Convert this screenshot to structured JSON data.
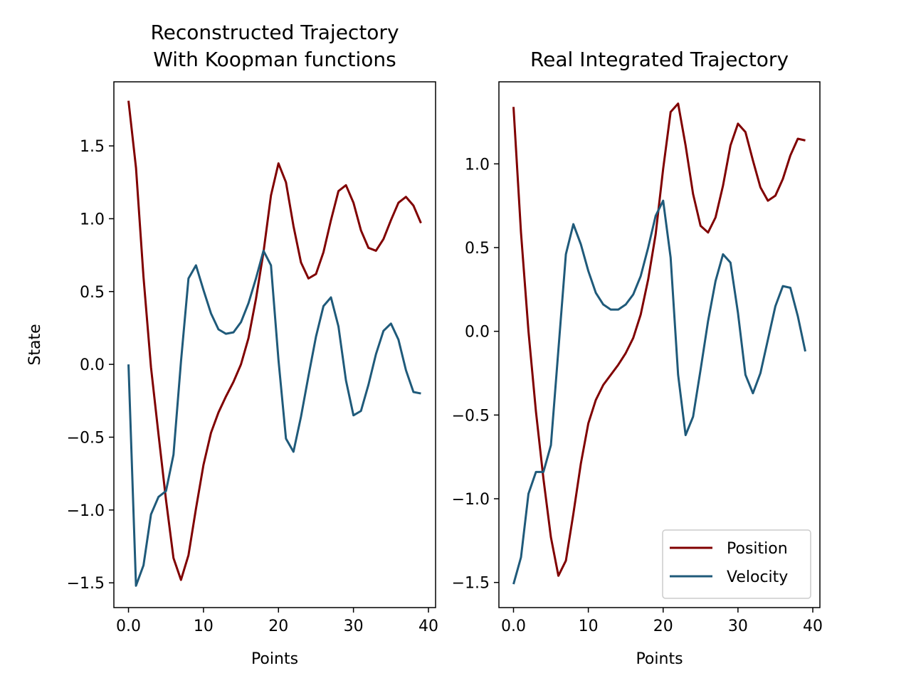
{
  "chart_data": [
    {
      "type": "line",
      "title": "Reconstructed Trajectory\nWith Koopman functions",
      "xlabel": "Points",
      "ylabel": "State",
      "xlim": [
        -1.95,
        40.95
      ],
      "ylim": [
        -1.67,
        1.94
      ],
      "xticks": [
        0,
        10,
        20,
        30,
        40
      ],
      "yticks": [
        -1.5,
        -1.0,
        -0.5,
        0.0,
        0.5,
        1.0,
        1.5
      ],
      "grid": false,
      "x": [
        0,
        1,
        2,
        3,
        4,
        5,
        6,
        7,
        8,
        9,
        10,
        11,
        12,
        13,
        14,
        15,
        16,
        17,
        18,
        19,
        20,
        21,
        22,
        23,
        24,
        25,
        26,
        27,
        28,
        29,
        30,
        31,
        32,
        33,
        34,
        35,
        36,
        37,
        38,
        39
      ],
      "series": [
        {
          "name": "Position",
          "color": "#800000",
          "values": [
            1.81,
            1.35,
            0.6,
            -0.02,
            -0.48,
            -0.93,
            -1.33,
            -1.48,
            -1.31,
            -0.99,
            -0.69,
            -0.47,
            -0.33,
            -0.22,
            -0.12,
            0.0,
            0.18,
            0.45,
            0.77,
            1.16,
            1.38,
            1.25,
            0.95,
            0.7,
            0.59,
            0.62,
            0.77,
            0.99,
            1.19,
            1.23,
            1.11,
            0.92,
            0.8,
            0.78,
            0.86,
            0.99,
            1.11,
            1.15,
            1.09,
            0.97
          ]
        },
        {
          "name": "Velocity",
          "color": "#1f5a7a",
          "values": [
            0.0,
            -1.52,
            -1.38,
            -1.03,
            -0.91,
            -0.87,
            -0.62,
            0.02,
            0.59,
            0.68,
            0.51,
            0.35,
            0.24,
            0.21,
            0.22,
            0.29,
            0.42,
            0.59,
            0.78,
            0.68,
            0.03,
            -0.51,
            -0.6,
            -0.36,
            -0.08,
            0.19,
            0.4,
            0.46,
            0.26,
            -0.11,
            -0.35,
            -0.32,
            -0.14,
            0.07,
            0.23,
            0.28,
            0.17,
            -0.04,
            -0.19,
            -0.2
          ]
        }
      ]
    },
    {
      "type": "line",
      "title": "Real Integrated Trajectory",
      "xlabel": "Points",
      "ylabel": "",
      "xlim": [
        -1.95,
        40.95
      ],
      "ylim": [
        -1.65,
        1.49
      ],
      "xticks": [
        0,
        10,
        20,
        30,
        40
      ],
      "yticks": [
        -1.5,
        -1.0,
        -0.5,
        0.0,
        0.5,
        1.0
      ],
      "grid": false,
      "legend": {
        "location": "lower right",
        "entries": [
          "Position",
          "Velocity"
        ]
      },
      "x": [
        0,
        1,
        2,
        3,
        4,
        5,
        6,
        7,
        8,
        9,
        10,
        11,
        12,
        13,
        14,
        15,
        16,
        17,
        18,
        19,
        20,
        21,
        22,
        23,
        24,
        25,
        26,
        27,
        28,
        29,
        30,
        31,
        32,
        33,
        34,
        35,
        36,
        37,
        38,
        39
      ],
      "series": [
        {
          "name": "Position",
          "color": "#800000",
          "values": [
            1.34,
            0.59,
            0.0,
            -0.48,
            -0.88,
            -1.23,
            -1.46,
            -1.37,
            -1.09,
            -0.79,
            -0.55,
            -0.41,
            -0.32,
            -0.26,
            -0.2,
            -0.13,
            -0.04,
            0.1,
            0.31,
            0.58,
            0.97,
            1.31,
            1.36,
            1.11,
            0.82,
            0.63,
            0.59,
            0.68,
            0.87,
            1.11,
            1.24,
            1.19,
            1.02,
            0.86,
            0.78,
            0.81,
            0.91,
            1.05,
            1.15,
            1.14
          ]
        },
        {
          "name": "Velocity",
          "color": "#1f5a7a",
          "values": [
            -1.51,
            -1.35,
            -0.97,
            -0.84,
            -0.84,
            -0.68,
            -0.11,
            0.46,
            0.64,
            0.52,
            0.36,
            0.23,
            0.16,
            0.13,
            0.13,
            0.16,
            0.22,
            0.33,
            0.5,
            0.69,
            0.78,
            0.44,
            -0.26,
            -0.62,
            -0.51,
            -0.23,
            0.06,
            0.3,
            0.46,
            0.41,
            0.11,
            -0.26,
            -0.37,
            -0.25,
            -0.05,
            0.15,
            0.27,
            0.26,
            0.09,
            -0.12
          ]
        }
      ]
    }
  ]
}
